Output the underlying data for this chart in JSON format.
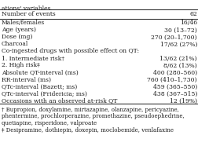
{
  "rows": [
    [
      "Number of events",
      "62",
      true
    ],
    [
      "Males/females",
      "16/46",
      false
    ],
    [
      "Age (years)",
      "30 (13–72)",
      false
    ],
    [
      "Dose (mg)",
      "270 (20–1,700)",
      false
    ],
    [
      "Charcoal",
      "17/62 (27%)",
      false
    ],
    [
      "Co-ingested drugs with possible effect on QT:",
      "",
      false
    ],
    [
      "1. Intermediate risk†",
      "13/62 (21%)",
      false
    ],
    [
      "2. High risk‡",
      "8/62 (13%)",
      false
    ],
    [
      "Absolute QT-interval (ms)",
      "400 (280–560)",
      false
    ],
    [
      "RR-interval (ms)",
      "760 (410–1,730)",
      false
    ],
    [
      "QTc-interval (Bazett; ms)",
      "459 (365–550)",
      false
    ],
    [
      "QTc-interval (Fridericia; ms)",
      "438 (367–515)",
      false
    ],
    [
      "Occasions with an observed at-risk QT",
      "12 (19%)",
      false
    ]
  ],
  "footnote1": "† Bupropion, doxylamine, mirtazapine, olanzapine, pericyazine,\nphentermine, prochlorperazine, promethazine, pseudoephedrine,\nquetiapine, risperidone, valproate",
  "footnote2": "‡ Desipramine, dothiepin, doxepin, moclobemide, venlafaxine",
  "partial_title": "ations' variables.",
  "background": "#ffffff",
  "text_color": "#1a1a1a",
  "font_size": 5.5,
  "footnote_font_size": 5.0
}
